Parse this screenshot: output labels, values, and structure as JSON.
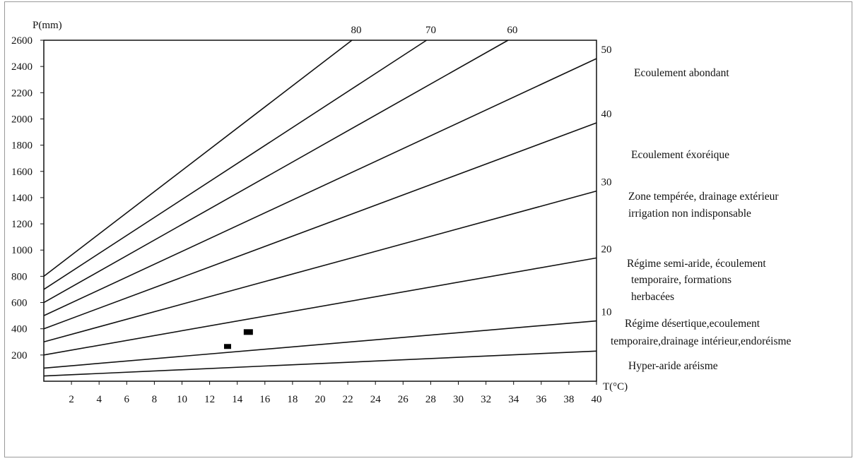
{
  "chart_data": {
    "type": "line",
    "title": "",
    "xlabel": "T(°C)",
    "ylabel": "P(mm)",
    "xlim": [
      0,
      40
    ],
    "ylim": [
      0,
      2600
    ],
    "x_ticks": [
      2,
      4,
      6,
      8,
      10,
      12,
      14,
      16,
      18,
      20,
      22,
      24,
      26,
      28,
      30,
      32,
      34,
      36,
      38,
      40
    ],
    "y_ticks": [
      200,
      400,
      600,
      800,
      1000,
      1200,
      1400,
      1600,
      1800,
      2000,
      2200,
      2400,
      2600
    ],
    "grid": false,
    "series": [
      {
        "name": "80",
        "points": [
          [
            0,
            800
          ],
          [
            22.3,
            2600
          ]
        ]
      },
      {
        "name": "70",
        "points": [
          [
            0,
            700
          ],
          [
            27.7,
            2600
          ]
        ]
      },
      {
        "name": "60",
        "points": [
          [
            0,
            600
          ],
          [
            33.6,
            2600
          ]
        ]
      },
      {
        "name": "50",
        "points": [
          [
            0,
            500
          ],
          [
            40,
            2460
          ]
        ]
      },
      {
        "name": "40",
        "points": [
          [
            0,
            400
          ],
          [
            40,
            1970
          ]
        ]
      },
      {
        "name": "30",
        "points": [
          [
            0,
            300
          ],
          [
            40,
            1450
          ]
        ]
      },
      {
        "name": "20",
        "points": [
          [
            0,
            200
          ],
          [
            40,
            940
          ]
        ]
      },
      {
        "name": "10",
        "points": [
          [
            0,
            100
          ],
          [
            40,
            460
          ]
        ]
      },
      {
        "name": "",
        "points": [
          [
            0,
            40
          ],
          [
            40,
            230
          ]
        ]
      }
    ],
    "markers": [
      {
        "x": 13.3,
        "y": 265
      },
      {
        "x": 14.8,
        "y": 375
      }
    ],
    "zones": [
      "Ecoulement abondant",
      "Ecoulement éxoréique",
      "Zone tempérée, drainage extérieur",
      "irrigation non indisponsable",
      "Régime semi-aride, écoulement",
      "temporaire, formations",
      "herbacées",
      "Régime désertique,ecoulement",
      "temporaire,drainage intérieur,endoréisme",
      "Hyper-aride aréisme"
    ]
  }
}
